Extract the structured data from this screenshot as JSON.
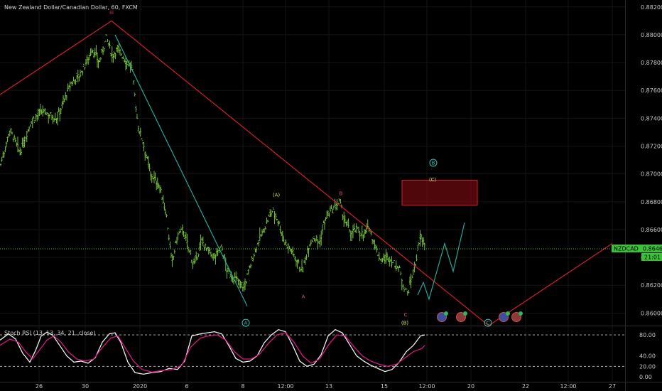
{
  "title": "New Zealand Dollar/Canadian Dollar, 60, FXCM",
  "colors": {
    "background": "#000000",
    "bars": "#7fd13b",
    "red_line": "#d21f2a",
    "teal_line": "#26a69a",
    "price_label": "#3ec13a",
    "stoch_k": "#f0f0f0",
    "stoch_d": "#d6197c",
    "stoch_bands": "#bfbfbf"
  },
  "chart_data": [
    {
      "type": "line",
      "title": "New Zealand Dollar/Canadian Dollar, 60, FXCM",
      "y_ticks": [
        "0.88200",
        "0.88000",
        "0.87800",
        "0.87600",
        "0.87400",
        "0.87200",
        "0.87000",
        "0.86800",
        "0.86600",
        "0.86400",
        "0.86200",
        "0.86000"
      ],
      "ylim": [
        0.8591,
        0.8825
      ],
      "x_ticks": [
        "26",
        "30",
        "2020",
        "6",
        "8",
        "12:00",
        "13",
        "15",
        "12:00",
        "20",
        "22",
        "12:00",
        "27"
      ],
      "last_price": {
        "symbol": "NZDCAD",
        "value": "0.86462",
        "countdown": "21:01"
      },
      "price_path": [
        [
          0,
          0.8705
        ],
        [
          14,
          0.8732
        ],
        [
          28,
          0.8715
        ],
        [
          44,
          0.8738
        ],
        [
          60,
          0.8745
        ],
        [
          80,
          0.874
        ],
        [
          100,
          0.8765
        ],
        [
          114,
          0.8772
        ],
        [
          130,
          0.879
        ],
        [
          140,
          0.878
        ],
        [
          150,
          0.8798
        ],
        [
          158,
          0.8785
        ],
        [
          166,
          0.879
        ],
        [
          176,
          0.8782
        ],
        [
          186,
          0.8776
        ],
        [
          194,
          0.8735
        ],
        [
          202,
          0.8722
        ],
        [
          212,
          0.87
        ],
        [
          224,
          0.8692
        ],
        [
          234,
          0.8672
        ],
        [
          242,
          0.8635
        ],
        [
          250,
          0.8656
        ],
        [
          258,
          0.866
        ],
        [
          266,
          0.8645
        ],
        [
          274,
          0.8634
        ],
        [
          284,
          0.8652
        ],
        [
          292,
          0.8645
        ],
        [
          302,
          0.864
        ],
        [
          312,
          0.8648
        ],
        [
          320,
          0.863
        ],
        [
          330,
          0.8625
        ],
        [
          338,
          0.8622
        ],
        [
          344,
          0.8618
        ],
        [
          350,
          0.863
        ],
        [
          356,
          0.864
        ],
        [
          364,
          0.8652
        ],
        [
          372,
          0.866
        ],
        [
          378,
          0.8668
        ],
        [
          384,
          0.8674
        ],
        [
          392,
          0.8666
        ],
        [
          400,
          0.8652
        ],
        [
          410,
          0.8645
        ],
        [
          418,
          0.8638
        ],
        [
          426,
          0.863
        ],
        [
          434,
          0.8648
        ],
        [
          442,
          0.8655
        ],
        [
          450,
          0.865
        ],
        [
          456,
          0.8665
        ],
        [
          464,
          0.8672
        ],
        [
          472,
          0.8676
        ],
        [
          478,
          0.868
        ],
        [
          486,
          0.8665
        ],
        [
          494,
          0.8658
        ],
        [
          504,
          0.866
        ],
        [
          512,
          0.8656
        ],
        [
          520,
          0.8662
        ],
        [
          528,
          0.8648
        ],
        [
          536,
          0.8638
        ],
        [
          546,
          0.864
        ],
        [
          554,
          0.8636
        ],
        [
          562,
          0.8632
        ],
        [
          568,
          0.862
        ],
        [
          574,
          0.8614
        ],
        [
          580,
          0.8626
        ],
        [
          586,
          0.8638
        ],
        [
          592,
          0.8655
        ],
        [
          598,
          0.865
        ]
      ],
      "red_path": [
        [
          0,
          0.8757
        ],
        [
          157,
          0.881
        ],
        [
          688,
          0.8591
        ],
        [
          862,
          0.865
        ]
      ],
      "teal_paths": [
        [
          [
            162,
            0.88
          ],
          [
            348,
            0.8605
          ]
        ],
        [
          [
            588,
            0.8613
          ],
          [
            596,
            0.8622
          ],
          [
            604,
            0.861
          ],
          [
            626,
            0.865
          ],
          [
            638,
            0.863
          ],
          [
            654,
            0.8665
          ]
        ]
      ],
      "box": {
        "x_from": 566,
        "x_to": 672,
        "y_from": 0.86955,
        "y_to": 0.86775
      },
      "wave_labels": [
        {
          "text": "iii",
          "x": 157,
          "y": 0.8816,
          "color": "#e2357a",
          "circled": false
        },
        {
          "text": "(A)",
          "x": 389,
          "y": 0.8685,
          "color": "#c9e86a",
          "circled": false
        },
        {
          "text": "A",
          "x": 427,
          "y": 0.8612,
          "color": "#d8626d",
          "circled": false
        },
        {
          "text": "B",
          "x": 480,
          "y": 0.8686,
          "color": "#d8626d",
          "circled": false
        },
        {
          "text": "C",
          "x": 571,
          "y": 0.8599,
          "color": "#d8626d",
          "circled": false
        },
        {
          "text": "(B)",
          "x": 570,
          "y": 0.8593,
          "color": "#c9e86a",
          "circled": false
        },
        {
          "text": "(C)",
          "x": 609,
          "y": 0.8696,
          "color": "#c9e86a",
          "circled": false
        },
        {
          "text": "A",
          "x": 346,
          "y": 0.8593,
          "color": "#33c3b0",
          "circled": true
        },
        {
          "text": "B",
          "x": 610,
          "y": 0.8708,
          "color": "#33c3b0",
          "circled": true
        },
        {
          "text": "C",
          "x": 687,
          "y": 0.8593,
          "color": "#33c3b0",
          "circled": true
        }
      ]
    },
    {
      "type": "line",
      "title": "Stoch RSI (13, 13, 34, 21, close)",
      "y_ticks": [
        "80.00",
        "40.00",
        "20.00",
        "0.00"
      ],
      "ylim": [
        -4,
        95
      ],
      "bands": [
        80,
        20
      ],
      "series": [
        {
          "name": "K",
          "color": "#f0f0f0",
          "points": [
            [
              0,
              70
            ],
            [
              12,
              82
            ],
            [
              22,
              72
            ],
            [
              32,
              45
            ],
            [
              42,
              28
            ],
            [
              50,
              50
            ],
            [
              58,
              78
            ],
            [
              66,
              85
            ],
            [
              74,
              80
            ],
            [
              84,
              60
            ],
            [
              94,
              40
            ],
            [
              104,
              28
            ],
            [
              114,
              30
            ],
            [
              124,
              26
            ],
            [
              134,
              36
            ],
            [
              144,
              66
            ],
            [
              154,
              82
            ],
            [
              162,
              84
            ],
            [
              170,
              66
            ],
            [
              180,
              28
            ],
            [
              190,
              8
            ],
            [
              202,
              5
            ],
            [
              214,
              8
            ],
            [
              226,
              10
            ],
            [
              238,
              16
            ],
            [
              250,
              14
            ],
            [
              260,
              30
            ],
            [
              270,
              78
            ],
            [
              282,
              82
            ],
            [
              292,
              84
            ],
            [
              302,
              86
            ],
            [
              312,
              82
            ],
            [
              322,
              60
            ],
            [
              332,
              35
            ],
            [
              342,
              28
            ],
            [
              352,
              30
            ],
            [
              362,
              40
            ],
            [
              372,
              65
            ],
            [
              382,
              80
            ],
            [
              392,
              90
            ],
            [
              402,
              86
            ],
            [
              412,
              60
            ],
            [
              422,
              30
            ],
            [
              432,
              20
            ],
            [
              442,
              24
            ],
            [
              452,
              42
            ],
            [
              462,
              78
            ],
            [
              472,
              90
            ],
            [
              482,
              84
            ],
            [
              492,
              62
            ],
            [
              502,
              40
            ],
            [
              512,
              30
            ],
            [
              522,
              22
            ],
            [
              532,
              16
            ],
            [
              542,
              10
            ],
            [
              552,
              14
            ],
            [
              562,
              28
            ],
            [
              572,
              48
            ],
            [
              582,
              60
            ],
            [
              592,
              78
            ],
            [
              598,
              80
            ]
          ]
        },
        {
          "name": "D",
          "color": "#d6197c",
          "points": [
            [
              0,
              60
            ],
            [
              14,
              72
            ],
            [
              26,
              66
            ],
            [
              36,
              48
            ],
            [
              46,
              34
            ],
            [
              56,
              52
            ],
            [
              66,
              70
            ],
            [
              76,
              78
            ],
            [
              86,
              66
            ],
            [
              96,
              48
            ],
            [
              108,
              34
            ],
            [
              120,
              30
            ],
            [
              132,
              34
            ],
            [
              144,
              56
            ],
            [
              156,
              74
            ],
            [
              166,
              78
            ],
            [
              176,
              56
            ],
            [
              188,
              30
            ],
            [
              200,
              14
            ],
            [
              214,
              9
            ],
            [
              228,
              12
            ],
            [
              242,
              14
            ],
            [
              256,
              22
            ],
            [
              268,
              56
            ],
            [
              282,
              74
            ],
            [
              294,
              78
            ],
            [
              306,
              80
            ],
            [
              318,
              70
            ],
            [
              330,
              48
            ],
            [
              342,
              34
            ],
            [
              354,
              34
            ],
            [
              366,
              44
            ],
            [
              378,
              64
            ],
            [
              390,
              80
            ],
            [
              402,
              84
            ],
            [
              414,
              66
            ],
            [
              426,
              40
            ],
            [
              438,
              26
            ],
            [
              450,
              34
            ],
            [
              462,
              60
            ],
            [
              474,
              80
            ],
            [
              486,
              78
            ],
            [
              498,
              58
            ],
            [
              510,
              40
            ],
            [
              522,
              30
            ],
            [
              534,
              24
            ],
            [
              546,
              20
            ],
            [
              558,
              24
            ],
            [
              570,
              36
            ],
            [
              582,
              48
            ],
            [
              594,
              54
            ],
            [
              598,
              60
            ]
          ]
        }
      ]
    }
  ]
}
